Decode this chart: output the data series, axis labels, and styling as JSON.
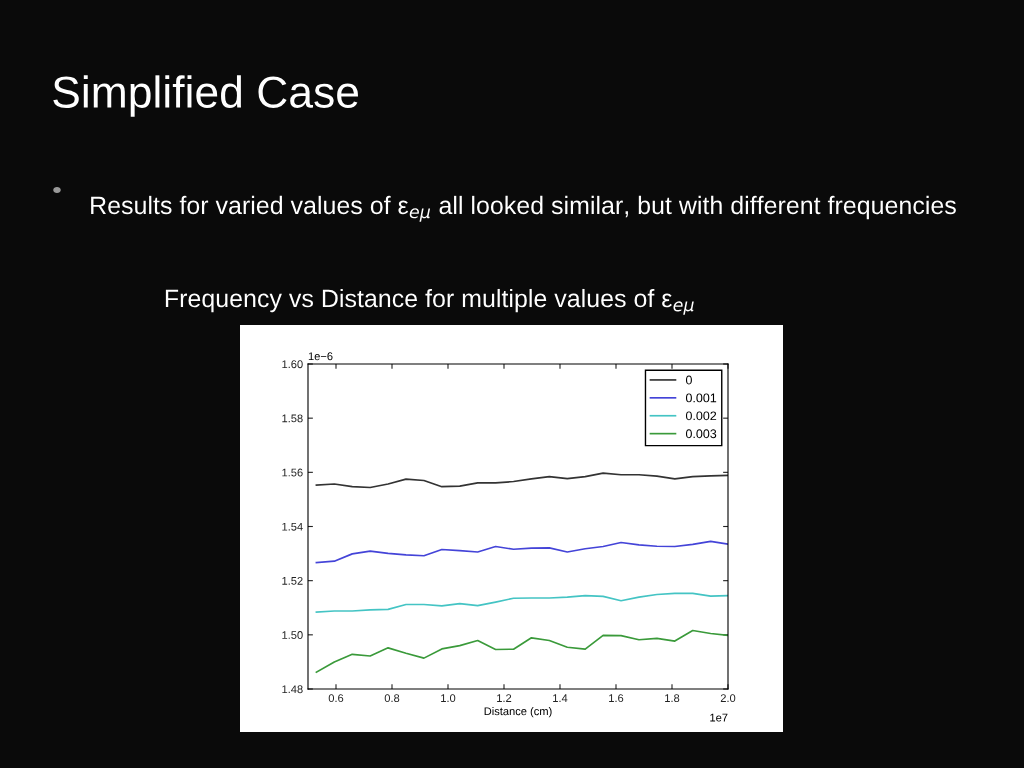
{
  "chart_data": {
    "type": "line",
    "title": "Frequency vs Distance for multiple values of ε$_{eμ}$",
    "annotations": [
      "Simplified Case",
      "Results for varied values of ε$_{eμ}$ all looked similar, but with different frequencies",
      "1e−6",
      "1e7"
    ],
    "xlabel": "Distance (cm)",
    "x": [
      0.53,
      0.594,
      0.658,
      0.722,
      0.786,
      0.85,
      0.914,
      0.978,
      1.042,
      1.106,
      1.17,
      1.234,
      1.298,
      1.362,
      1.426,
      1.49,
      1.554,
      1.618,
      1.682,
      1.746,
      1.81,
      1.874,
      1.938,
      2.0
    ],
    "series": [
      {
        "name": "0",
        "color": "#333333",
        "values": [
          1.5553,
          1.5557,
          1.5547,
          1.5544,
          1.5557,
          1.5575,
          1.557,
          1.5547,
          1.5549,
          1.5561,
          1.5561,
          1.5566,
          1.5576,
          1.5584,
          1.5577,
          1.5584,
          1.5597,
          1.5591,
          1.5591,
          1.5586,
          1.5576,
          1.5584,
          1.5587,
          1.5589
        ]
      },
      {
        "name": "0.001",
        "color": "#4444d8",
        "values": [
          1.5267,
          1.5272,
          1.5299,
          1.5309,
          1.5301,
          1.5295,
          1.5292,
          1.5315,
          1.5311,
          1.5306,
          1.5326,
          1.5316,
          1.532,
          1.5321,
          1.5306,
          1.5318,
          1.5326,
          1.5341,
          1.5332,
          1.5327,
          1.5326,
          1.5334,
          1.5345,
          1.5335
        ]
      },
      {
        "name": "0.002",
        "color": "#44c4c4",
        "values": [
          1.5084,
          1.5088,
          1.5088,
          1.5092,
          1.5094,
          1.5112,
          1.5112,
          1.5107,
          1.5115,
          1.5108,
          1.5121,
          1.5135,
          1.5136,
          1.5136,
          1.5139,
          1.5145,
          1.5142,
          1.5126,
          1.5139,
          1.5149,
          1.5153,
          1.5153,
          1.5143,
          1.5145
        ]
      },
      {
        "name": "0.003",
        "color": "#3a9a3a",
        "values": [
          1.4862,
          1.49,
          1.4928,
          1.4922,
          1.4952,
          1.4932,
          1.4914,
          1.4948,
          1.496,
          1.4979,
          1.4946,
          1.4947,
          1.4989,
          1.4979,
          1.4954,
          1.4947,
          1.4998,
          1.4997,
          1.4982,
          1.4987,
          1.4977,
          1.5016,
          1.5005,
          1.4998
        ]
      }
    ],
    "xlim": [
      0.5,
      2.0
    ],
    "xticks": [
      {
        "value": 0.6,
        "label": "0.6"
      },
      {
        "value": 0.8,
        "label": "0.8"
      },
      {
        "value": 1.0,
        "label": "1.0"
      },
      {
        "value": 1.2,
        "label": "1.2"
      },
      {
        "value": 1.4,
        "label": "1.4"
      },
      {
        "value": 1.6,
        "label": "1.6"
      },
      {
        "value": 1.8,
        "label": "1.8"
      },
      {
        "value": 2.0,
        "label": "2.0"
      }
    ],
    "ylim": [
      1.48,
      1.6
    ],
    "yticks": [
      {
        "value": 1.48,
        "label": "1.48"
      },
      {
        "value": 1.5,
        "label": "1.50"
      },
      {
        "value": 1.52,
        "label": "1.52"
      },
      {
        "value": 1.54,
        "label": "1.54"
      },
      {
        "value": 1.56,
        "label": "1.56"
      },
      {
        "value": 1.58,
        "label": "1.58"
      },
      {
        "value": 1.6,
        "label": "1.60"
      }
    ],
    "legend": "top right",
    "grid": false,
    "marker": "none",
    "line_style": "solid"
  }
}
